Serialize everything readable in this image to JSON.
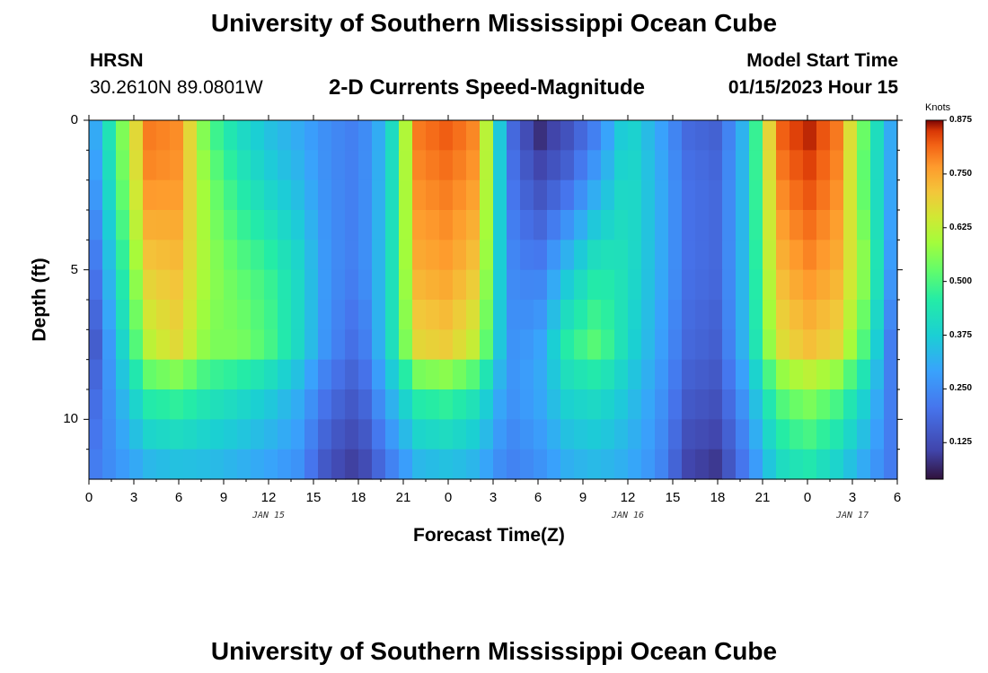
{
  "header": {
    "title": "University of Southern Mississippi Ocean Cube",
    "station_id": "HRSN",
    "coordinates": "30.2610N  89.0801W",
    "plot_title": "2-D Currents Speed-Magnitude",
    "model_label": "Model Start Time",
    "model_time": "01/15/2023 Hour 15"
  },
  "footer": {
    "title": "University of Southern Mississippi Ocean Cube"
  },
  "colors": {
    "background": "#ffffff",
    "low": "#30123b",
    "high": "#7a0403"
  },
  "chart_data": {
    "type": "heatmap",
    "xlabel": "Forecast Time(Z)",
    "ylabel": "Depth (ft)",
    "x_start_hour": 0,
    "x_end_hour": 54,
    "x_ticks": [
      "0",
      "3",
      "6",
      "9",
      "12",
      "15",
      "18",
      "21",
      "0",
      "3",
      "6",
      "9",
      "12",
      "15",
      "18",
      "21",
      "0",
      "3",
      "6"
    ],
    "date_labels": [
      {
        "text": "JAN 15",
        "hour": 12
      },
      {
        "text": "JAN 16",
        "hour": 36
      },
      {
        "text": "JAN 17",
        "hour": 51
      }
    ],
    "y_ticks": [
      "0",
      "5",
      "10"
    ],
    "y_range": [
      0,
      12
    ],
    "colorbar": {
      "unit": "Knots",
      "range": [
        0.04,
        0.875
      ],
      "ticks": [
        "0.875",
        "0.750",
        "0.625",
        "0.500",
        "0.375",
        "0.250",
        "0.125"
      ],
      "tick_values": [
        0.875,
        0.75,
        0.625,
        0.5,
        0.375,
        0.25,
        0.125
      ]
    },
    "time_hours": [
      0,
      4,
      6,
      8,
      10,
      12,
      14,
      16,
      18,
      20,
      22,
      24,
      26,
      28,
      30,
      32,
      34,
      36,
      38,
      40,
      42,
      44,
      46,
      48,
      50,
      52,
      54
    ],
    "depth_levels": [
      0,
      2,
      5,
      7.5,
      9,
      12
    ],
    "speed_knots": [
      [
        0.25,
        0.8,
        0.78,
        0.5,
        0.4,
        0.34,
        0.3,
        0.25,
        0.22,
        0.35,
        0.8,
        0.83,
        0.78,
        0.2,
        0.06,
        0.12,
        0.22,
        0.4,
        0.3,
        0.18,
        0.16,
        0.35,
        0.82,
        0.87,
        0.8,
        0.5,
        0.25
      ],
      [
        0.22,
        0.78,
        0.77,
        0.55,
        0.45,
        0.38,
        0.33,
        0.25,
        0.22,
        0.36,
        0.78,
        0.8,
        0.76,
        0.22,
        0.12,
        0.18,
        0.3,
        0.42,
        0.32,
        0.2,
        0.18,
        0.36,
        0.78,
        0.84,
        0.78,
        0.48,
        0.25
      ],
      [
        0.15,
        0.7,
        0.72,
        0.58,
        0.52,
        0.48,
        0.4,
        0.26,
        0.22,
        0.38,
        0.74,
        0.76,
        0.7,
        0.25,
        0.22,
        0.35,
        0.45,
        0.42,
        0.32,
        0.2,
        0.18,
        0.36,
        0.72,
        0.78,
        0.74,
        0.55,
        0.2
      ],
      [
        0.1,
        0.62,
        0.68,
        0.55,
        0.55,
        0.5,
        0.4,
        0.25,
        0.18,
        0.38,
        0.68,
        0.7,
        0.62,
        0.26,
        0.28,
        0.46,
        0.52,
        0.4,
        0.3,
        0.18,
        0.16,
        0.35,
        0.66,
        0.72,
        0.68,
        0.48,
        0.15
      ],
      [
        0.15,
        0.48,
        0.5,
        0.45,
        0.42,
        0.38,
        0.32,
        0.2,
        0.15,
        0.32,
        0.48,
        0.5,
        0.44,
        0.26,
        0.3,
        0.4,
        0.42,
        0.36,
        0.28,
        0.16,
        0.14,
        0.3,
        0.52,
        0.58,
        0.52,
        0.38,
        0.18
      ],
      [
        0.22,
        0.3,
        0.32,
        0.32,
        0.3,
        0.28,
        0.25,
        0.12,
        0.08,
        0.2,
        0.3,
        0.32,
        0.3,
        0.22,
        0.25,
        0.3,
        0.32,
        0.3,
        0.25,
        0.1,
        0.08,
        0.22,
        0.38,
        0.42,
        0.36,
        0.28,
        0.2
      ]
    ]
  }
}
